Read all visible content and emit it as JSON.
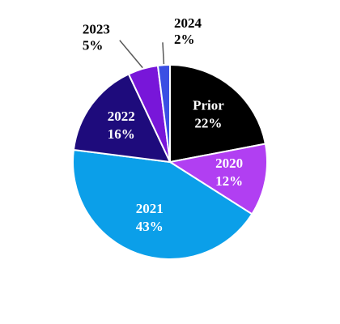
{
  "chart_data": {
    "type": "pie",
    "categories": [
      "Prior",
      "2020",
      "2021",
      "2022",
      "2023",
      "2024"
    ],
    "values": [
      22,
      12,
      43,
      16,
      5,
      2
    ],
    "value_labels": [
      "22%",
      "12%",
      "43%",
      "16%",
      "5%",
      "2%"
    ],
    "colors": [
      "#000000",
      "#b13ff2",
      "#0b9fe9",
      "#1e0b7c",
      "#7816d9",
      "#3a4fe3"
    ],
    "start_angle": 0,
    "direction": "clockwise"
  }
}
